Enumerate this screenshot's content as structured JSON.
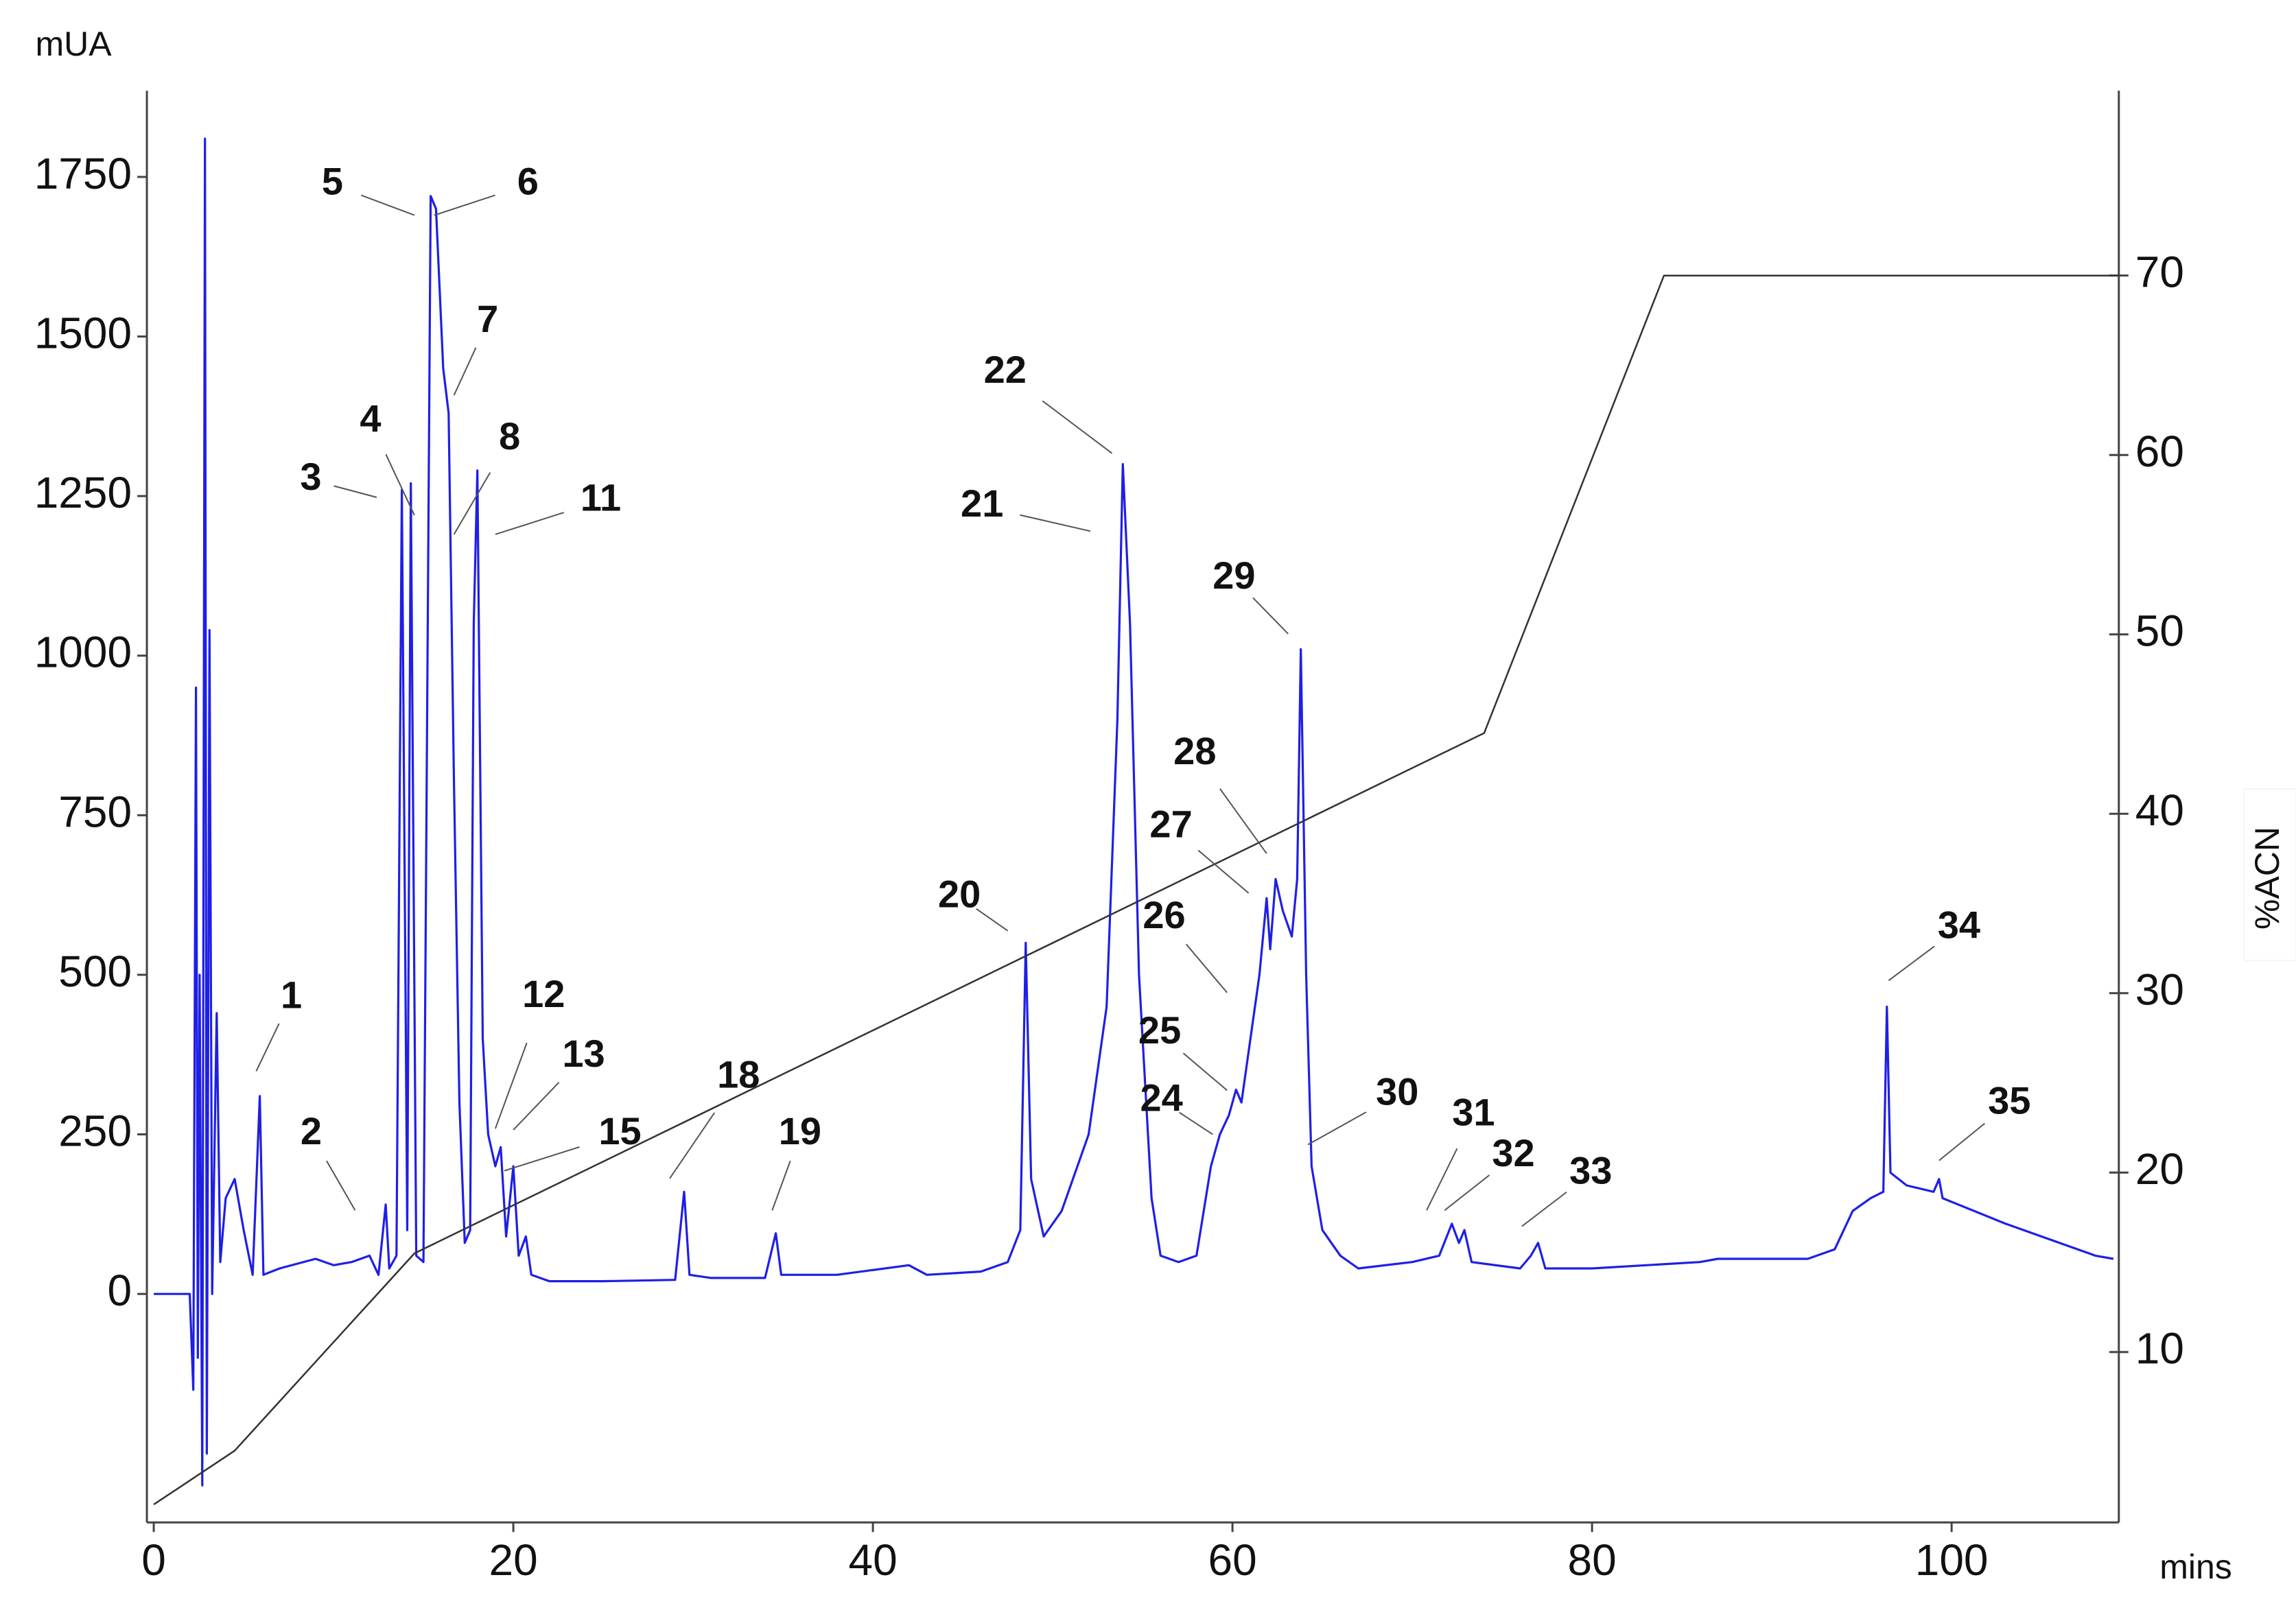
{
  "chart_data": {
    "type": "line",
    "y_label": "mUA",
    "x_label": "mins",
    "y2_label": "%ACN",
    "xlim": [
      0,
      109.3
    ],
    "xticks": [
      0,
      20,
      40,
      60,
      80,
      100
    ],
    "ylim": [
      -358,
      1885
    ],
    "yticks": [
      0,
      250,
      500,
      750,
      1000,
      1250,
      1500,
      1750
    ],
    "y2lim": [
      0.5,
      80.3
    ],
    "y2ticks": [
      10,
      20,
      30,
      40,
      50,
      60,
      70
    ],
    "series": [
      {
        "color": "#1f1fe6",
        "x": [
          0,
          2.0,
          2.2,
          2.35,
          2.45,
          2.55,
          2.7,
          2.85,
          2.95,
          3.1,
          3.25,
          3.5,
          3.7,
          4.0,
          4.5,
          5.0,
          5.5,
          5.9,
          6.1,
          7,
          9,
          10,
          11,
          12,
          12.5,
          12.9,
          13.1,
          13.5,
          13.8,
          14.1,
          14.3,
          14.6,
          15.0,
          15.4,
          15.7,
          16.1,
          16.4,
          16.7,
          17.0,
          17.3,
          17.6,
          17.8,
          18.0,
          18.3,
          18.6,
          19.0,
          19.3,
          19.6,
          20.0,
          20.3,
          20.7,
          21.0,
          22,
          25,
          29,
          29.5,
          29.8,
          31,
          34,
          34.6,
          34.9,
          38,
          42,
          43,
          46,
          47.5,
          48.2,
          48.5,
          48.8,
          49.5,
          50.5,
          52,
          53,
          53.6,
          53.9,
          54.3,
          54.8,
          55.5,
          56,
          57,
          58,
          58.8,
          59.3,
          59.8,
          60.2,
          60.5,
          61,
          61.5,
          61.9,
          62.1,
          62.4,
          62.8,
          63.3,
          63.6,
          63.8,
          64.1,
          64.4,
          65,
          66,
          67,
          70,
          71.5,
          72.2,
          72.6,
          72.9,
          73.3,
          76,
          76.6,
          77,
          77.4,
          80,
          86,
          87,
          92,
          93.5,
          94.5,
          95.5,
          96.2,
          96.4,
          96.6,
          97.5,
          99,
          99.3,
          99.5,
          103,
          106,
          108,
          109
        ],
        "values": [
          0,
          0,
          -150,
          950,
          -100,
          500,
          -300,
          1810,
          -250,
          1040,
          0,
          440,
          50,
          150,
          180,
          100,
          30,
          310,
          30,
          40,
          55,
          45,
          50,
          60,
          30,
          140,
          40,
          60,
          1260,
          100,
          1270,
          60,
          50,
          1720,
          1700,
          1450,
          1380,
          800,
          300,
          80,
          100,
          1050,
          1290,
          400,
          250,
          200,
          230,
          90,
          200,
          60,
          90,
          30,
          20,
          20,
          22,
          160,
          30,
          25,
          25,
          95,
          30,
          30,
          45,
          30,
          35,
          50,
          100,
          550,
          180,
          90,
          130,
          250,
          450,
          900,
          1300,
          1050,
          500,
          150,
          60,
          50,
          60,
          200,
          250,
          280,
          320,
          300,
          400,
          500,
          620,
          540,
          650,
          600,
          560,
          650,
          1010,
          500,
          200,
          100,
          60,
          40,
          50,
          60,
          110,
          80,
          100,
          50,
          40,
          60,
          80,
          40,
          40,
          50,
          55,
          55,
          70,
          130,
          150,
          160,
          450,
          190,
          170,
          160,
          180,
          150,
          110,
          80,
          60,
          55
        ]
      },
      {
        "color": "#333333",
        "axis": "y2",
        "x": [
          0,
          4.5,
          14.5,
          74,
          84,
          109.3
        ],
        "values": [
          1.5,
          4.5,
          15.5,
          44.5,
          70,
          70
        ]
      }
    ],
    "annotations": [
      {
        "text": "1",
        "x": 5.7,
        "y": 349
      },
      {
        "text": "2",
        "x": 11.2,
        "y": 131
      },
      {
        "text": "3",
        "x": 12.4,
        "y": 1248
      },
      {
        "text": "4",
        "x": 14.5,
        "y": 1220
      },
      {
        "text": "5",
        "x": 14.5,
        "y": 1690
      },
      {
        "text": "6",
        "x": 15.6,
        "y": 1690
      },
      {
        "text": "7",
        "x": 16.7,
        "y": 1408
      },
      {
        "text": "8",
        "x": 16.7,
        "y": 1190
      },
      {
        "text": "11",
        "x": 19.0,
        "y": 1190
      },
      {
        "text": "12",
        "x": 19.0,
        "y": 259
      },
      {
        "text": "13",
        "x": 20.0,
        "y": 257
      },
      {
        "text": "15",
        "x": 19.5,
        "y": 193
      },
      {
        "text": "18",
        "x": 28.7,
        "y": 181
      },
      {
        "text": "19",
        "x": 34.4,
        "y": 131
      },
      {
        "text": "20",
        "x": 47.5,
        "y": 569
      },
      {
        "text": "21",
        "x": 52.1,
        "y": 1195
      },
      {
        "text": "22",
        "x": 53.3,
        "y": 1317
      },
      {
        "text": "24",
        "x": 58.9,
        "y": 250
      },
      {
        "text": "25",
        "x": 59.7,
        "y": 319
      },
      {
        "text": "26",
        "x": 59.7,
        "y": 472
      },
      {
        "text": "27",
        "x": 60.9,
        "y": 628
      },
      {
        "text": "28",
        "x": 61.9,
        "y": 690
      },
      {
        "text": "29",
        "x": 63.1,
        "y": 1034
      },
      {
        "text": "30",
        "x": 64.2,
        "y": 234
      },
      {
        "text": "31",
        "x": 70.8,
        "y": 131
      },
      {
        "text": "32",
        "x": 71.8,
        "y": 131
      },
      {
        "text": "33",
        "x": 76.1,
        "y": 106
      },
      {
        "text": "34",
        "x": 96.5,
        "y": 491
      },
      {
        "text": "35",
        "x": 99.3,
        "y": 209
      }
    ]
  }
}
